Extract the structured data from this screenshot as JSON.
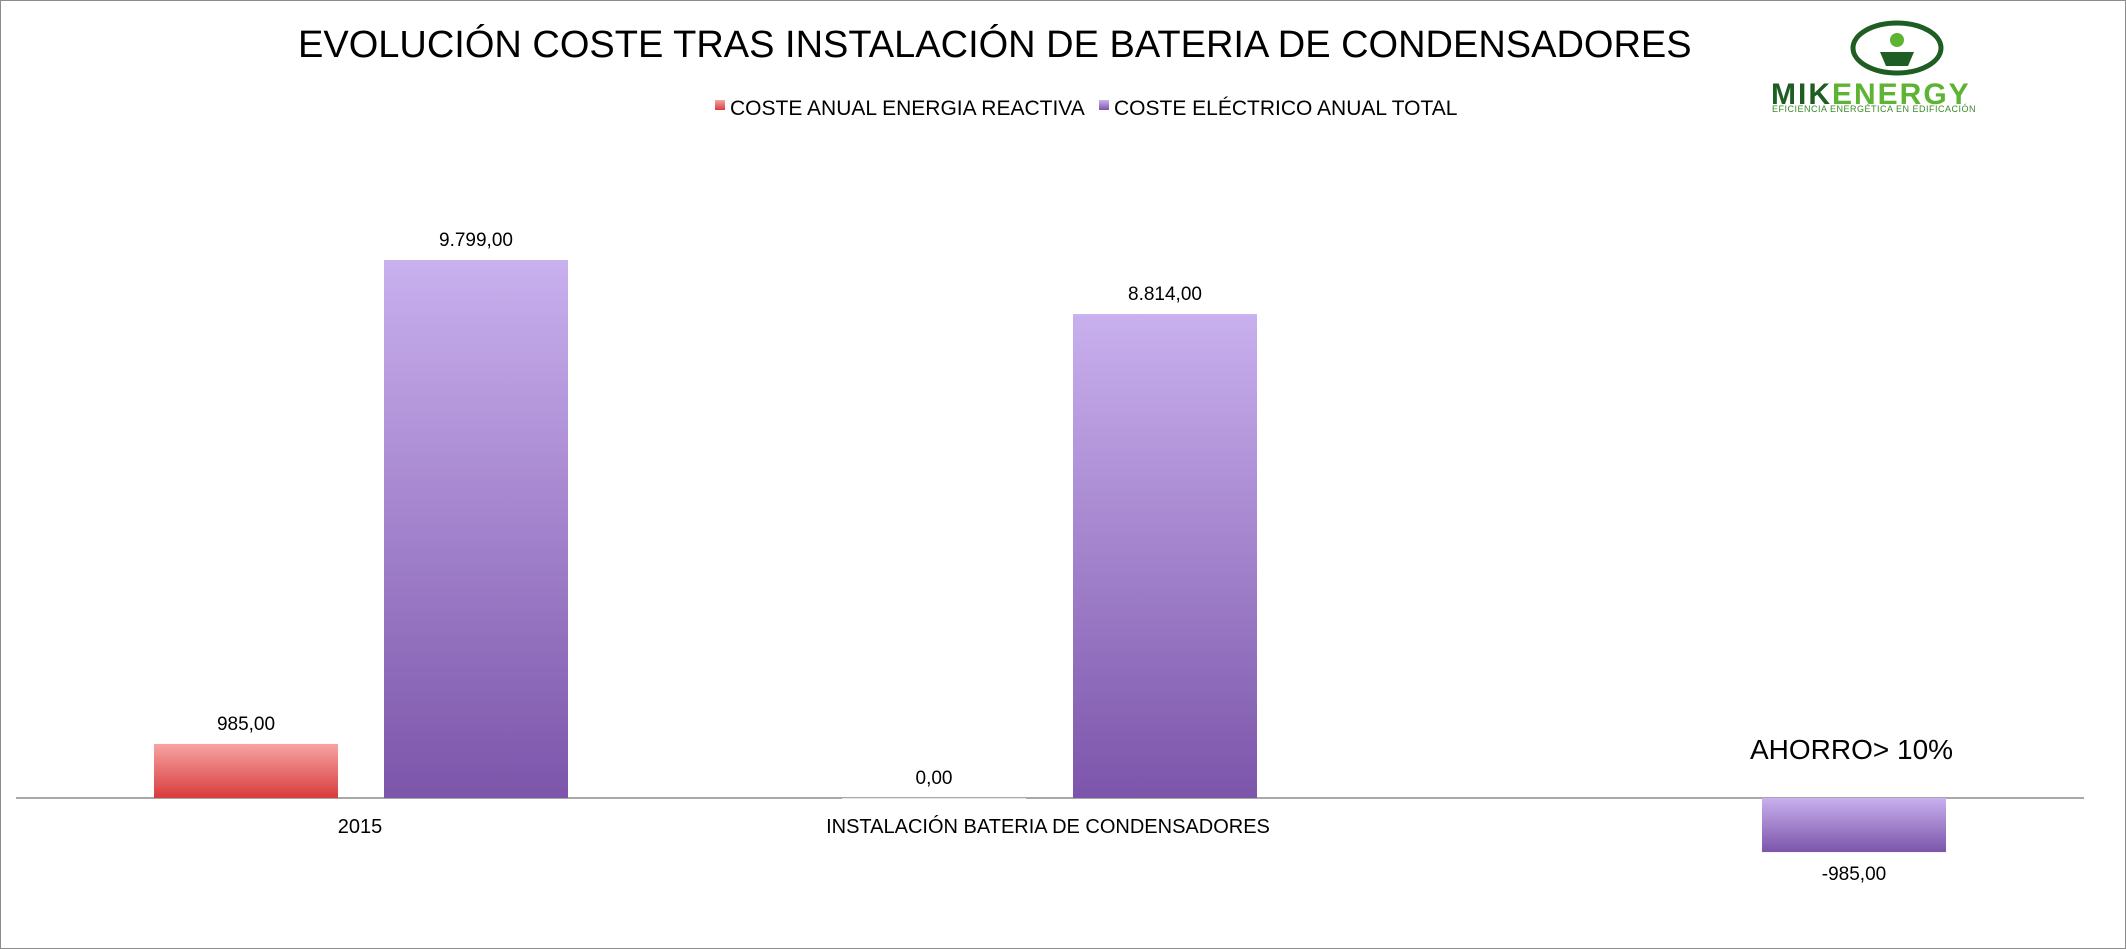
{
  "chart_data": {
    "type": "bar",
    "title": "EVOLUCIÓN COSTE TRAS INSTALACIÓN DE BATERIA DE CONDENSADORES",
    "categories": [
      "2015",
      "INSTALACIÓN BATERIA DE CONDENSADORES",
      ""
    ],
    "series": [
      {
        "name": "COSTE ANUAL ENERGIA REACTIVA",
        "color": "#d83c3c",
        "values": [
          985,
          0,
          null
        ],
        "labels": [
          "985,00",
          "0,00",
          ""
        ]
      },
      {
        "name": "COSTE ELÉCTRICO ANUAL TOTAL",
        "color": "#8e6bbf",
        "values": [
          9799,
          8814,
          -985
        ],
        "labels": [
          "9.799,00",
          "8.814,00",
          "-985,00"
        ]
      }
    ],
    "annotation": "AHORRO> 10%",
    "ylim": [
      -1500,
      12000
    ],
    "legend_position": "top",
    "grid": false
  },
  "logo": {
    "name_part1": "MIK",
    "name_part2": "ENERGY",
    "tagline": "EFICIENCIA ENERGÉTICA EN EDIFICACIÓN",
    "dark_color": "#1e5e22",
    "light_color": "#5db332"
  }
}
